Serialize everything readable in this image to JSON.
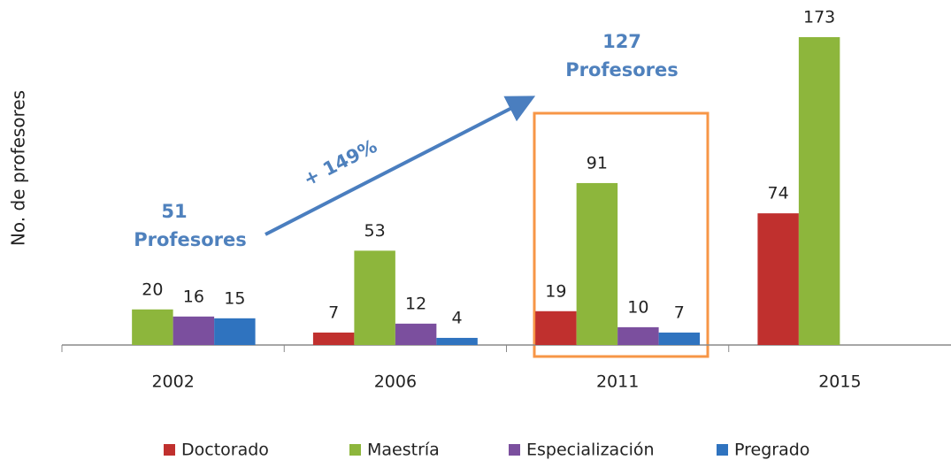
{
  "chart_data": {
    "type": "bar",
    "y_axis_label": "No. de  profesores",
    "categories": [
      "2002",
      "2006",
      "2011",
      "2015"
    ],
    "series": [
      {
        "name": "Doctorado",
        "color": "#c0302e",
        "values": [
          null,
          7,
          19,
          74
        ]
      },
      {
        "name": "Maestría",
        "color": "#8db63c",
        "values": [
          20,
          53,
          91,
          173
        ]
      },
      {
        "name": "Especialización",
        "color": "#7b4f9e",
        "values": [
          16,
          12,
          10,
          null
        ]
      },
      {
        "name": "Pregrado",
        "color": "#2f73bf",
        "values": [
          15,
          4,
          7,
          null
        ]
      }
    ],
    "annotations": [
      "51",
      "Profesores",
      "127",
      "Profesores",
      "+ 149%"
    ]
  }
}
